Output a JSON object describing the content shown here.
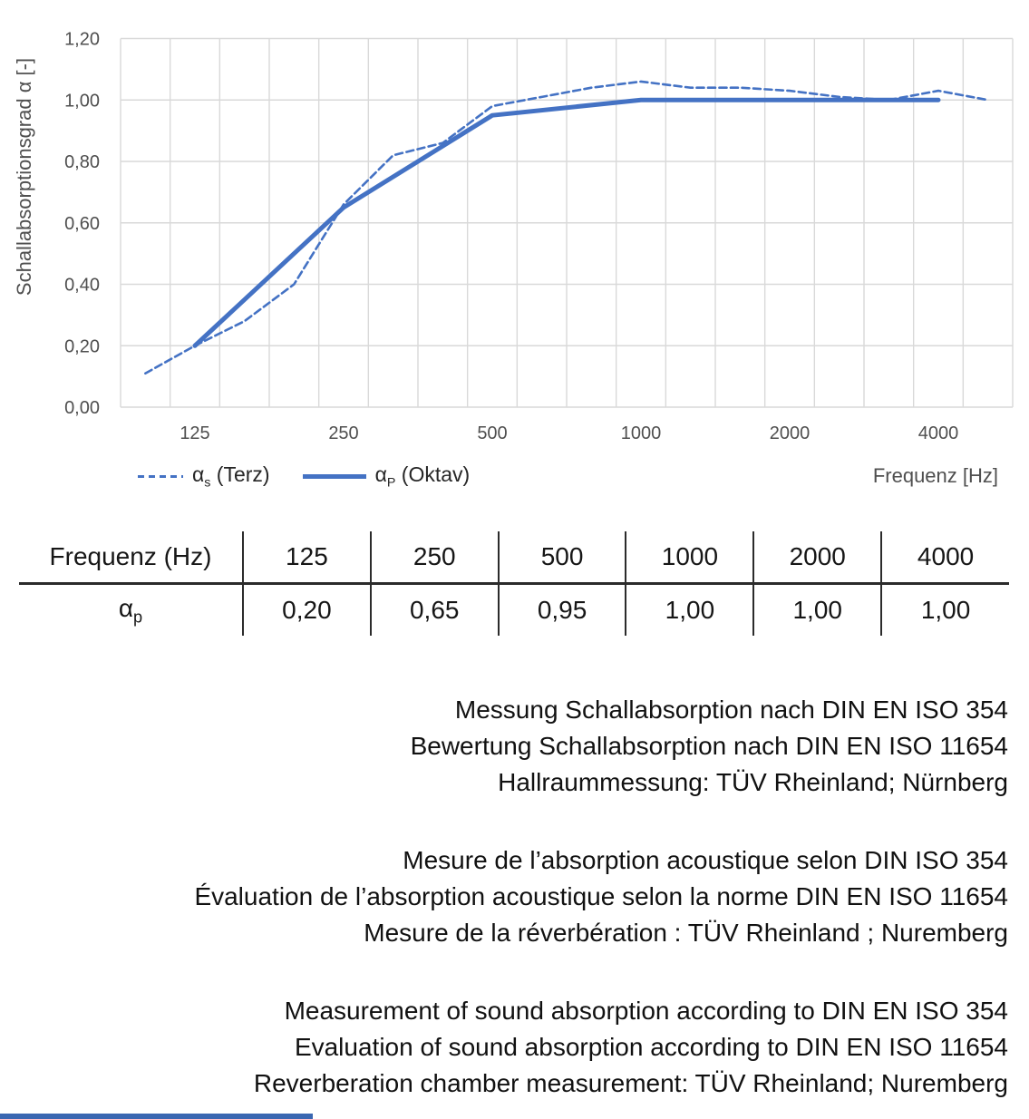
{
  "chart": {
    "y_axis_title": "Schallabsorptionsgrad α [-]",
    "x_axis_title": "Frequenz [Hz]",
    "y_ticks": [
      "0,00",
      "0,20",
      "0,40",
      "0,60",
      "0,80",
      "1,00",
      "1,20"
    ],
    "x_ticks": [
      "125",
      "250",
      "500",
      "1000",
      "2000",
      "4000"
    ],
    "legend": [
      {
        "style": "dashed",
        "alpha": "α",
        "sub": "s",
        "rest": " (Terz)"
      },
      {
        "style": "solid",
        "alpha": "α",
        "sub": "P",
        "rest": " (Oktav)"
      }
    ],
    "line_color": "#4472C4",
    "grid_color": "#D9D9D9",
    "tick_color": "#4f4f4f",
    "accent_bar_color": "#3A67B1"
  },
  "chart_data": {
    "type": "line",
    "title": "",
    "xlabel": "Frequenz [Hz]",
    "ylabel": "Schallabsorptionsgrad α [-]",
    "x_scale": "log-categories",
    "ylim": [
      0,
      1.2
    ],
    "y_tick_step": 0.2,
    "grid": true,
    "legend_position": "bottom-left",
    "x_categories_third_octave": [
      100,
      125,
      160,
      200,
      250,
      315,
      400,
      500,
      630,
      800,
      1000,
      1250,
      1600,
      2000,
      2500,
      3150,
      4000,
      5000
    ],
    "series": [
      {
        "name": "αs (Terz)",
        "style": "dashed",
        "x": [
          100,
          125,
          160,
          200,
          250,
          315,
          400,
          500,
          630,
          800,
          1000,
          1250,
          1600,
          2000,
          2500,
          3150,
          4000,
          5000
        ],
        "values": [
          0.11,
          0.2,
          0.28,
          0.4,
          0.66,
          0.82,
          0.86,
          0.98,
          1.01,
          1.04,
          1.06,
          1.04,
          1.04,
          1.03,
          1.01,
          1.0,
          1.03,
          1.0
        ]
      },
      {
        "name": "αP (Oktav)",
        "style": "solid",
        "x": [
          125,
          250,
          500,
          1000,
          2000,
          4000
        ],
        "values": [
          0.2,
          0.65,
          0.95,
          1.0,
          1.0,
          1.0
        ]
      }
    ]
  },
  "table": {
    "header": [
      "Frequenz (Hz)",
      "125",
      "250",
      "500",
      "1000",
      "2000",
      "4000"
    ],
    "row_label": "α",
    "row_label_sub": "p",
    "values": [
      "0,20",
      "0,65",
      "0,95",
      "1,00",
      "1,00",
      "1,00"
    ]
  },
  "notes": {
    "de": [
      "Messung Schallabsorption nach DIN EN ISO 354",
      "Bewertung Schallabsorption nach DIN EN ISO 11654",
      "Hallraummessung: TÜV Rheinland; Nürnberg"
    ],
    "fr": [
      "Mesure de l’absorption acoustique selon DIN ISO 354",
      "Évaluation de l’absorption acoustique selon la norme DIN EN ISO 11654",
      "Mesure de la réverbération : TÜV Rheinland ; Nuremberg"
    ],
    "en": [
      "Measurement of sound absorption according to DIN EN ISO 354",
      "Evaluation of sound absorption according to DIN EN ISO 11654",
      "Reverberation chamber measurement: TÜV Rheinland; Nuremberg"
    ]
  }
}
